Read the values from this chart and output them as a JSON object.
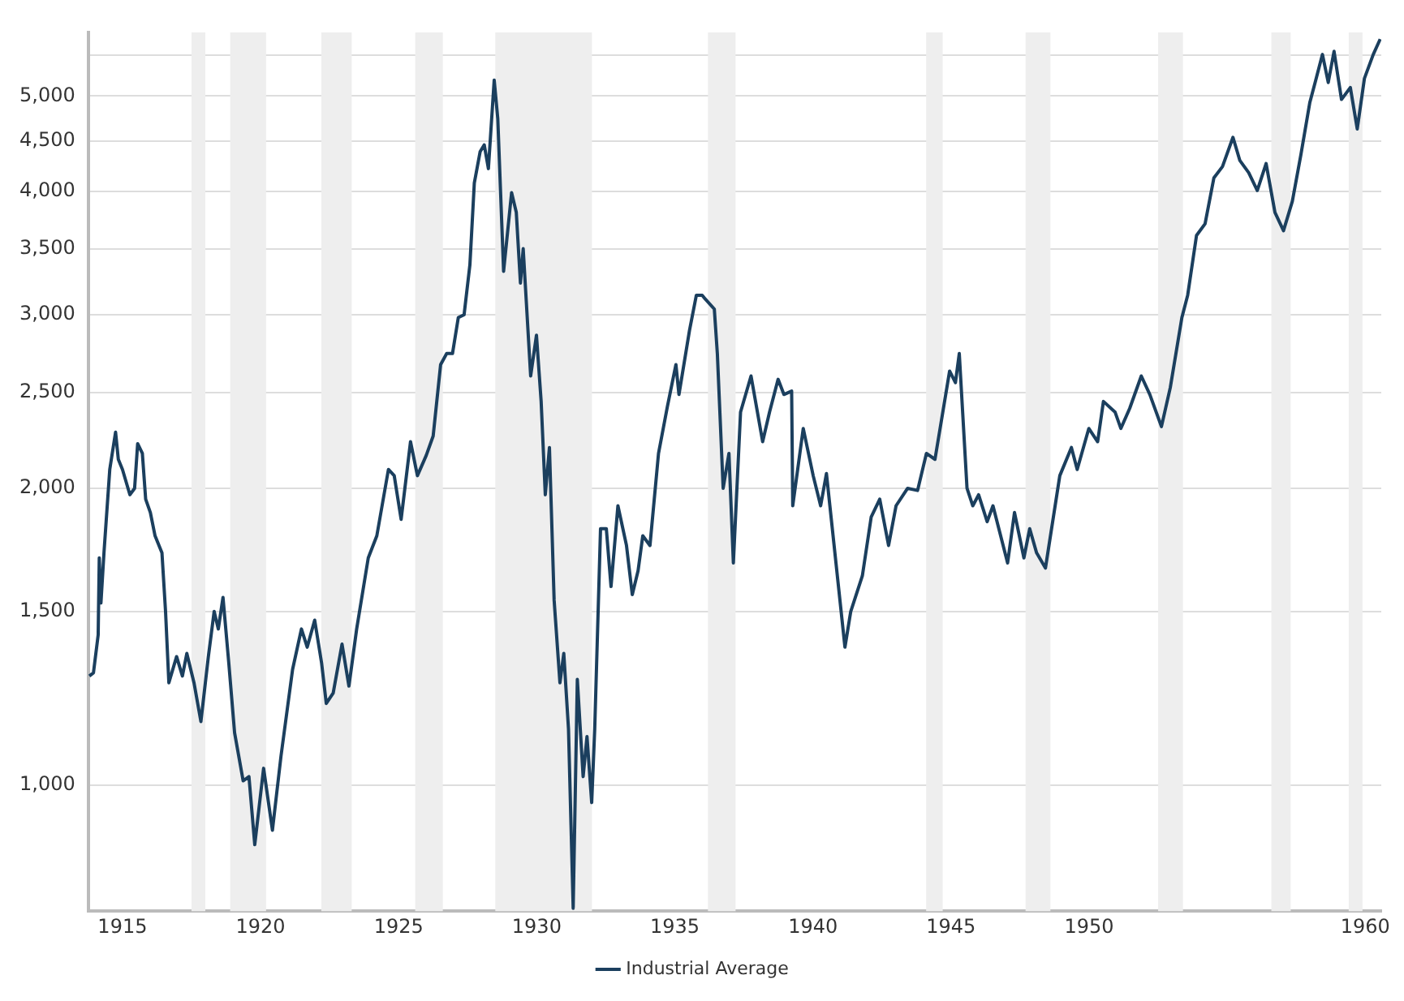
{
  "chart_data": {
    "type": "line",
    "legend": "bottom",
    "grid": "y",
    "log": "y",
    "marker": "none",
    "line_style": "solid",
    "xlim": [
      1913.76,
      1960.58
    ],
    "xticks": [
      1915,
      1920,
      1925,
      1930,
      1935,
      1940,
      1945,
      1950,
      1960
    ],
    "ylim": [
      745,
      5800
    ],
    "yticks": [
      {
        "value": 1000,
        "label": "1,000"
      },
      {
        "value": 1500,
        "label": "1,500"
      },
      {
        "value": 2000,
        "label": "2,000"
      },
      {
        "value": 2500,
        "label": "2,500"
      },
      {
        "value": 3000,
        "label": "3,000"
      },
      {
        "value": 3500,
        "label": "3,500"
      },
      {
        "value": 4000,
        "label": "4,000"
      },
      {
        "value": 4500,
        "label": "4,500"
      },
      {
        "value": 5000,
        "label": "5,000"
      },
      {
        "value": 5500,
        "label": null
      }
    ],
    "bands": [
      {
        "axis": "x",
        "from": 1917.5,
        "to": 1918.0,
        "color": "#eeeeee"
      },
      {
        "axis": "x",
        "from": 1918.9,
        "to": 1920.2,
        "color": "#eeeeee"
      },
      {
        "axis": "x",
        "from": 1922.2,
        "to": 1923.3,
        "color": "#eeeeee"
      },
      {
        "axis": "x",
        "from": 1925.6,
        "to": 1926.6,
        "color": "#eeeeee"
      },
      {
        "axis": "x",
        "from": 1928.5,
        "to": 1932.0,
        "color": "#eeeeee"
      },
      {
        "axis": "x",
        "from": 1936.2,
        "to": 1937.2,
        "color": "#eeeeee"
      },
      {
        "axis": "x",
        "from": 1944.1,
        "to": 1944.7,
        "color": "#eeeeee"
      },
      {
        "axis": "x",
        "from": 1947.7,
        "to": 1948.6,
        "color": "#eeeeee"
      },
      {
        "axis": "x",
        "from": 1952.5,
        "to": 1953.4,
        "color": "#eeeeee"
      },
      {
        "axis": "x",
        "from": 1956.6,
        "to": 1957.3,
        "color": "#eeeeee"
      },
      {
        "axis": "x",
        "from": 1959.4,
        "to": 1959.9,
        "color": "#eeeeee"
      }
    ],
    "series": [
      {
        "name": "Industrial Average",
        "color": "#1b3f5e",
        "x": [
          1913.8,
          1913.95,
          1914.12,
          1914.16,
          1914.22,
          1914.33,
          1914.54,
          1914.75,
          1914.85,
          1915.0,
          1915.27,
          1915.44,
          1915.55,
          1915.72,
          1915.84,
          1916.01,
          1916.18,
          1916.43,
          1916.56,
          1916.68,
          1916.96,
          1917.17,
          1917.33,
          1917.59,
          1917.84,
          1918.11,
          1918.32,
          1918.47,
          1918.64,
          1918.85,
          1919.06,
          1919.37,
          1919.58,
          1919.79,
          1920.11,
          1920.43,
          1920.74,
          1921.16,
          1921.48,
          1921.69,
          1921.96,
          1922.21,
          1922.38,
          1922.63,
          1922.95,
          1923.2,
          1923.48,
          1923.9,
          1924.21,
          1924.63,
          1924.84,
          1925.09,
          1925.43,
          1925.68,
          1926.0,
          1926.25,
          1926.52,
          1926.74,
          1926.95,
          1927.16,
          1927.37,
          1927.58,
          1927.74,
          1927.95,
          1928.1,
          1928.25,
          1928.46,
          1928.59,
          1928.8,
          1929.09,
          1929.26,
          1929.41,
          1929.51,
          1929.78,
          1929.99,
          1930.16,
          1930.31,
          1930.46,
          1930.63,
          1930.84,
          1930.98,
          1931.15,
          1931.32,
          1931.47,
          1931.68,
          1931.82,
          1931.99,
          1932.1,
          1932.31,
          1932.52,
          1932.69,
          1932.94,
          1933.25,
          1933.46,
          1933.67,
          1933.84,
          1934.1,
          1934.41,
          1934.73,
          1935.04,
          1935.15,
          1935.53,
          1935.78,
          1935.99,
          1936.11,
          1936.43,
          1936.54,
          1936.75,
          1936.96,
          1937.12,
          1937.38,
          1937.76,
          1938.18,
          1938.43,
          1938.74,
          1938.95,
          1939.23,
          1939.27,
          1939.65,
          1940.01,
          1940.28,
          1940.49,
          1941.16,
          1941.37,
          1941.79,
          1942.11,
          1942.42,
          1942.74,
          1943.01,
          1943.43,
          1943.79,
          1944.11,
          1944.42,
          1944.95,
          1945.16,
          1945.3,
          1945.58,
          1945.79,
          1946.0,
          1946.31,
          1946.52,
          1947.05,
          1947.3,
          1947.64,
          1947.85,
          1948.1,
          1948.42,
          1948.94,
          1949.36,
          1949.57,
          1949.99,
          1950.31,
          1950.52,
          1950.94,
          1951.15,
          1951.47,
          1951.89,
          1952.2,
          1952.62,
          1952.94,
          1953.36,
          1953.57,
          1953.89,
          1954.2,
          1954.52,
          1954.83,
          1955.21,
          1955.46,
          1955.78,
          1956.09,
          1956.41,
          1956.73,
          1957.04,
          1957.36,
          1957.67,
          1957.99,
          1958.2,
          1958.45,
          1958.66,
          1958.87,
          1959.14,
          1959.46,
          1959.71,
          1959.97,
          1960.29,
          1960.54
        ],
        "values": [
          1290,
          1300,
          1420,
          1700,
          1530,
          1720,
          2090,
          2280,
          2140,
          2090,
          1970,
          2000,
          2220,
          2170,
          1950,
          1890,
          1790,
          1720,
          1500,
          1270,
          1350,
          1290,
          1360,
          1270,
          1160,
          1350,
          1500,
          1440,
          1550,
          1330,
          1130,
          1010,
          1020,
          870,
          1040,
          900,
          1070,
          1310,
          1440,
          1380,
          1470,
          1330,
          1210,
          1240,
          1390,
          1260,
          1440,
          1700,
          1790,
          2090,
          2060,
          1860,
          2230,
          2060,
          2160,
          2260,
          2670,
          2740,
          2740,
          2980,
          3000,
          3370,
          4080,
          4390,
          4460,
          4220,
          5190,
          4740,
          3320,
          3990,
          3810,
          3230,
          3500,
          2600,
          2860,
          2450,
          1970,
          2200,
          1540,
          1270,
          1360,
          1140,
          750,
          1280,
          1020,
          1120,
          960,
          1140,
          1820,
          1820,
          1590,
          1920,
          1750,
          1560,
          1650,
          1790,
          1750,
          2170,
          2420,
          2670,
          2490,
          2890,
          3140,
          3140,
          3110,
          3040,
          2740,
          2000,
          2170,
          1680,
          2390,
          2600,
          2230,
          2390,
          2580,
          2490,
          2510,
          1920,
          2300,
          2060,
          1920,
          2070,
          1380,
          1500,
          1630,
          1870,
          1950,
          1750,
          1920,
          2000,
          1990,
          2170,
          2140,
          2630,
          2560,
          2740,
          2000,
          1920,
          1970,
          1850,
          1920,
          1680,
          1890,
          1700,
          1820,
          1720,
          1660,
          2060,
          2200,
          2090,
          2300,
          2230,
          2450,
          2390,
          2300,
          2410,
          2600,
          2490,
          2310,
          2530,
          2980,
          3140,
          3610,
          3710,
          4130,
          4240,
          4540,
          4300,
          4180,
          4010,
          4270,
          3810,
          3650,
          3910,
          4360,
          4920,
          5180,
          5510,
          5160,
          5550,
          4960,
          5100,
          4630,
          5210,
          5510,
          5710
        ]
      }
    ]
  }
}
